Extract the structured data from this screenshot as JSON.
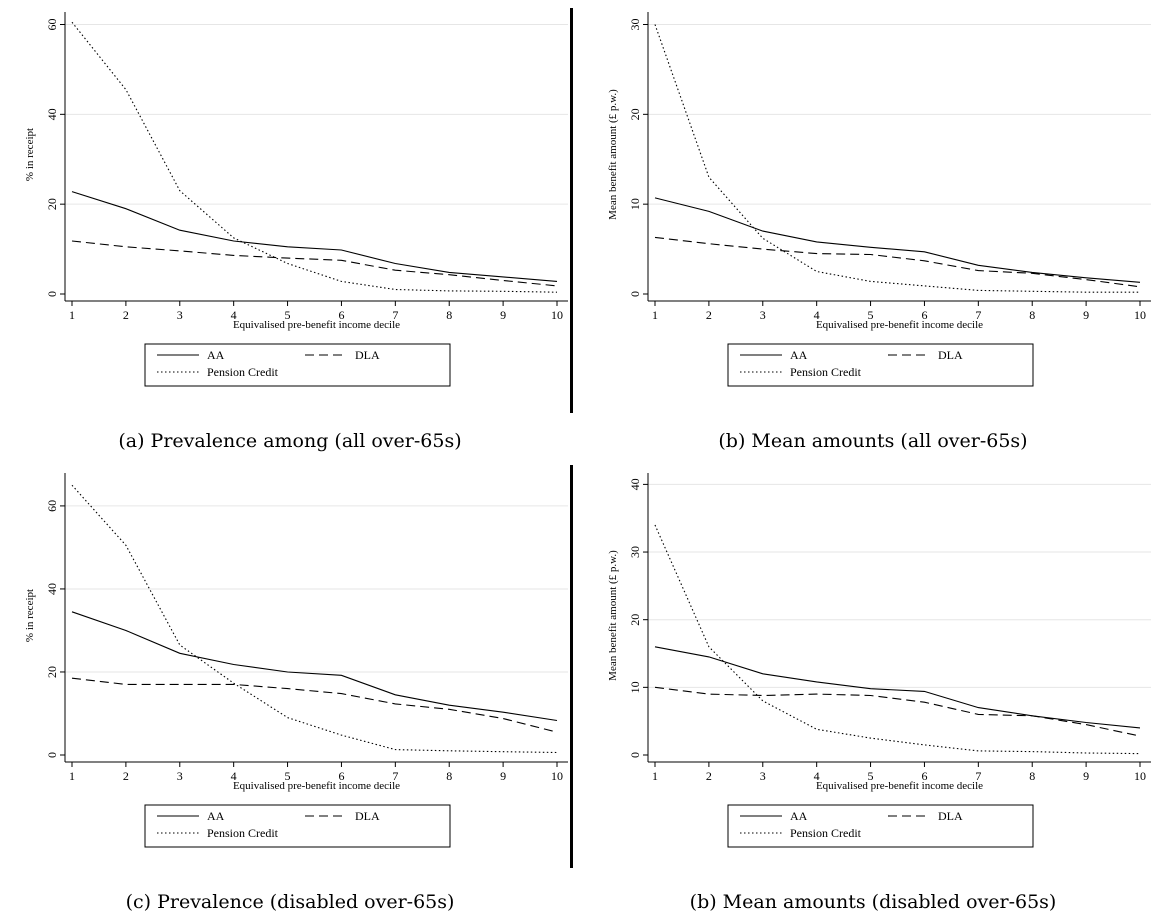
{
  "chart_data": [
    {
      "type": "line",
      "caption": "(a) Prevalence among (all over-65s)",
      "xlabel": "Equivalised pre-benefit income decile",
      "ylabel": "% in receipt",
      "x": [
        1,
        2,
        3,
        4,
        5,
        6,
        7,
        8,
        9,
        10
      ],
      "xticks": [
        "1",
        "2",
        "3",
        "4",
        "5",
        "6",
        "7",
        "8",
        "9",
        "10"
      ],
      "yticks": [
        "0",
        "20",
        "40",
        "60"
      ],
      "ylim": [
        0,
        61
      ],
      "grid": true,
      "series": [
        {
          "name": "AA",
          "style": "solid",
          "values": [
            22.8,
            19.0,
            14.2,
            11.8,
            10.5,
            9.8,
            6.8,
            4.8,
            3.8,
            2.8
          ]
        },
        {
          "name": "DLA",
          "style": "dashed",
          "values": [
            11.8,
            10.5,
            9.6,
            8.6,
            8.0,
            7.5,
            5.3,
            4.3,
            3.0,
            1.8
          ]
        },
        {
          "name": "Pension Credit",
          "style": "dotted",
          "values": [
            60.5,
            45.5,
            23.0,
            12.5,
            6.8,
            2.8,
            1.0,
            0.7,
            0.6,
            0.4
          ]
        }
      ]
    },
    {
      "type": "line",
      "caption": "(b) Mean amounts (all over-65s)",
      "xlabel": "Equivalised pre-benefit income decile",
      "ylabel": "Mean benefit amount (£ p.w.)",
      "x": [
        1,
        2,
        3,
        4,
        5,
        6,
        7,
        8,
        9,
        10
      ],
      "xticks": [
        "1",
        "2",
        "3",
        "4",
        "5",
        "6",
        "7",
        "8",
        "9",
        "10"
      ],
      "yticks": [
        "0",
        "10",
        "20",
        "30"
      ],
      "ylim": [
        0,
        30.5
      ],
      "grid": true,
      "series": [
        {
          "name": "AA",
          "style": "solid",
          "values": [
            10.7,
            9.2,
            7.0,
            5.8,
            5.2,
            4.7,
            3.2,
            2.4,
            1.8,
            1.3
          ]
        },
        {
          "name": "DLA",
          "style": "dashed",
          "values": [
            6.3,
            5.6,
            5.0,
            4.5,
            4.4,
            3.7,
            2.6,
            2.3,
            1.6,
            0.8
          ]
        },
        {
          "name": "Pension Credit",
          "style": "dotted",
          "values": [
            30.0,
            13.0,
            6.2,
            2.5,
            1.4,
            0.9,
            0.4,
            0.3,
            0.2,
            0.2
          ]
        }
      ]
    },
    {
      "type": "line",
      "caption": "(c) Prevalence (disabled over-65s)",
      "xlabel": "Equivalised pre-benefit income decile",
      "ylabel": "% in receipt",
      "x": [
        1,
        2,
        3,
        4,
        5,
        6,
        7,
        8,
        9,
        10
      ],
      "xticks": [
        "1",
        "2",
        "3",
        "4",
        "5",
        "6",
        "7",
        "8",
        "9",
        "10"
      ],
      "yticks": [
        "0",
        "20",
        "40",
        "60"
      ],
      "ylim": [
        0,
        66
      ],
      "grid": true,
      "series": [
        {
          "name": "AA",
          "style": "solid",
          "values": [
            34.5,
            30.0,
            24.5,
            21.8,
            20.0,
            19.2,
            14.5,
            12.0,
            10.3,
            8.3
          ]
        },
        {
          "name": "DLA",
          "style": "dashed",
          "values": [
            18.5,
            17.0,
            17.0,
            17.0,
            16.0,
            14.8,
            12.3,
            11.0,
            8.8,
            5.5
          ]
        },
        {
          "name": "Pension Credit",
          "style": "dotted",
          "values": [
            65.0,
            50.5,
            26.5,
            17.3,
            9.0,
            4.8,
            1.3,
            1.0,
            0.8,
            0.6
          ]
        }
      ]
    },
    {
      "type": "line",
      "caption": "(b) Mean amounts (disabled over-65s)",
      "xlabel": "Equivalised pre-benefit income decile",
      "ylabel": "Mean benefit amount (£ p.w.)",
      "x": [
        1,
        2,
        3,
        4,
        5,
        6,
        7,
        8,
        9,
        10
      ],
      "xticks": [
        "1",
        "2",
        "3",
        "4",
        "5",
        "6",
        "7",
        "8",
        "9",
        "10"
      ],
      "yticks": [
        "0",
        "10",
        "20",
        "30",
        "40"
      ],
      "ylim": [
        0,
        40.5
      ],
      "grid": true,
      "series": [
        {
          "name": "AA",
          "style": "solid",
          "values": [
            16.0,
            14.5,
            12.0,
            10.8,
            9.8,
            9.4,
            7.0,
            5.8,
            4.8,
            4.0
          ]
        },
        {
          "name": "DLA",
          "style": "dashed",
          "values": [
            10.0,
            9.0,
            8.8,
            9.0,
            8.8,
            7.8,
            6.0,
            5.8,
            4.5,
            2.8
          ]
        },
        {
          "name": "Pension Credit",
          "style": "dotted",
          "values": [
            34.0,
            16.0,
            8.0,
            3.8,
            2.5,
            1.5,
            0.6,
            0.5,
            0.3,
            0.2
          ]
        }
      ]
    }
  ]
}
